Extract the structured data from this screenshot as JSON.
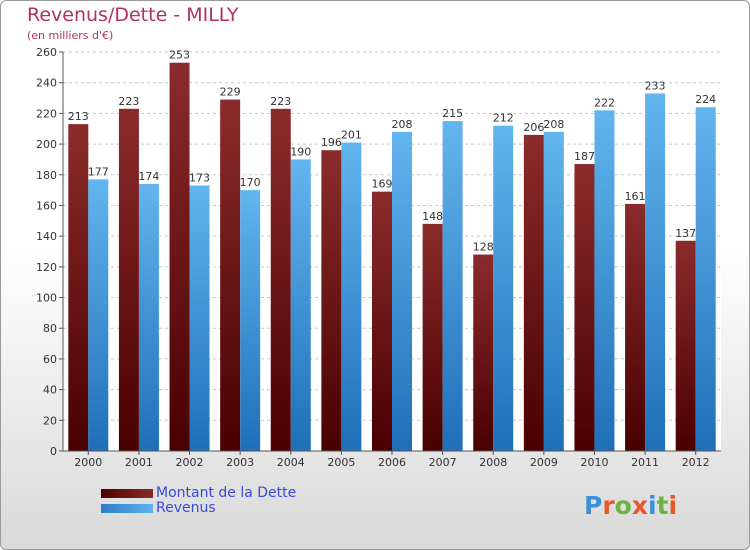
{
  "header": {
    "title": "Revenus/Dette - MILLY",
    "subtitle": "(en milliers d'€)"
  },
  "legend": {
    "dette_label": "Montant de la Dette",
    "revenus_label": "Revenus"
  },
  "brand": {
    "letters": [
      "P",
      "r",
      "o",
      "x",
      "i",
      "t",
      "i"
    ],
    "colors": [
      "#3a8fd8",
      "#e8572a",
      "#6cb33f",
      "#e8572a",
      "#3a8fd8",
      "#6cb33f",
      "#e8572a"
    ]
  },
  "colors": {
    "dette_dark": "#4a0000",
    "dette_light": "#8b2b2b",
    "revenus_dark": "#1f6fb8",
    "revenus_light": "#62b5ee",
    "title": "#b03060",
    "legend_text": "#3a4ad8"
  },
  "chart_data": {
    "type": "bar",
    "categories": [
      "2000",
      "2001",
      "2002",
      "2003",
      "2004",
      "2005",
      "2006",
      "2007",
      "2008",
      "2009",
      "2010",
      "2011",
      "2012"
    ],
    "series": [
      {
        "name": "Montant de la Dette",
        "values": [
          213,
          223,
          253,
          229,
          223,
          196,
          169,
          148,
          128,
          206,
          187,
          161,
          137
        ]
      },
      {
        "name": "Revenus",
        "values": [
          177,
          174,
          173,
          170,
          190,
          201,
          208,
          215,
          212,
          208,
          222,
          233,
          224
        ]
      }
    ],
    "ylim": [
      0,
      260
    ],
    "yticks": [
      0,
      20,
      40,
      60,
      80,
      100,
      120,
      140,
      160,
      180,
      200,
      220,
      240,
      260
    ],
    "grid": true,
    "legend_position": "bottom-left"
  }
}
